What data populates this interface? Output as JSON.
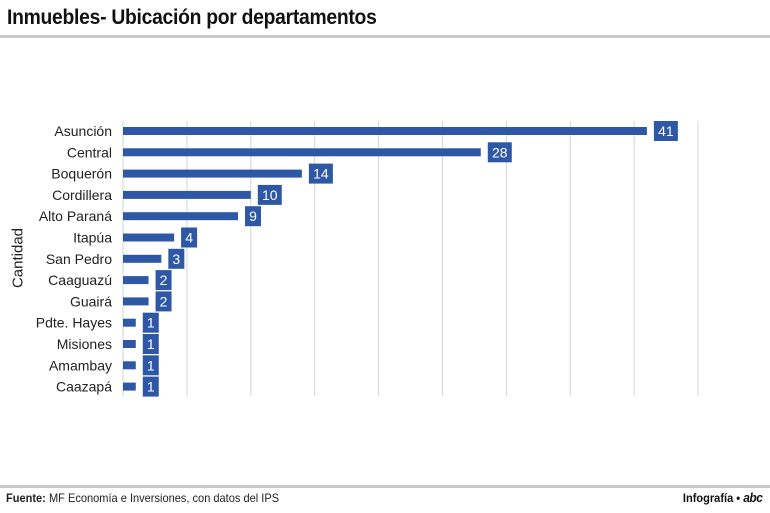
{
  "header": {
    "title": "Inmuebles- Ubicación por departamentos"
  },
  "footer": {
    "source_label": "Fuente:",
    "source_text": "MF Economía e Inversiones, con datos del IPS",
    "credit_text": "Infografía •",
    "credit_logo": "abc"
  },
  "colors": {
    "bar": "#2e58a6",
    "grid": "#d4d4d4",
    "rule": "#c8c9cb"
  },
  "chart_data": {
    "type": "bar",
    "orientation": "horizontal",
    "title": "Inmuebles- Ubicación por departamentos",
    "ylabel": "Cantidad",
    "xlabel": "",
    "categories": [
      "Asunción",
      "Central",
      "Boquerón",
      "Cordillera",
      "Alto Paraná",
      "Itapúa",
      "San Pedro",
      "Caaguazú",
      "Guairá",
      "Pdte. Hayes",
      "Misiones",
      "Amambay",
      "Caazapá"
    ],
    "values": [
      41,
      28,
      14,
      10,
      9,
      4,
      3,
      2,
      2,
      1,
      1,
      1,
      1
    ],
    "xlim": [
      0,
      45
    ],
    "grid": true,
    "data_labels": true,
    "legend": "none"
  }
}
